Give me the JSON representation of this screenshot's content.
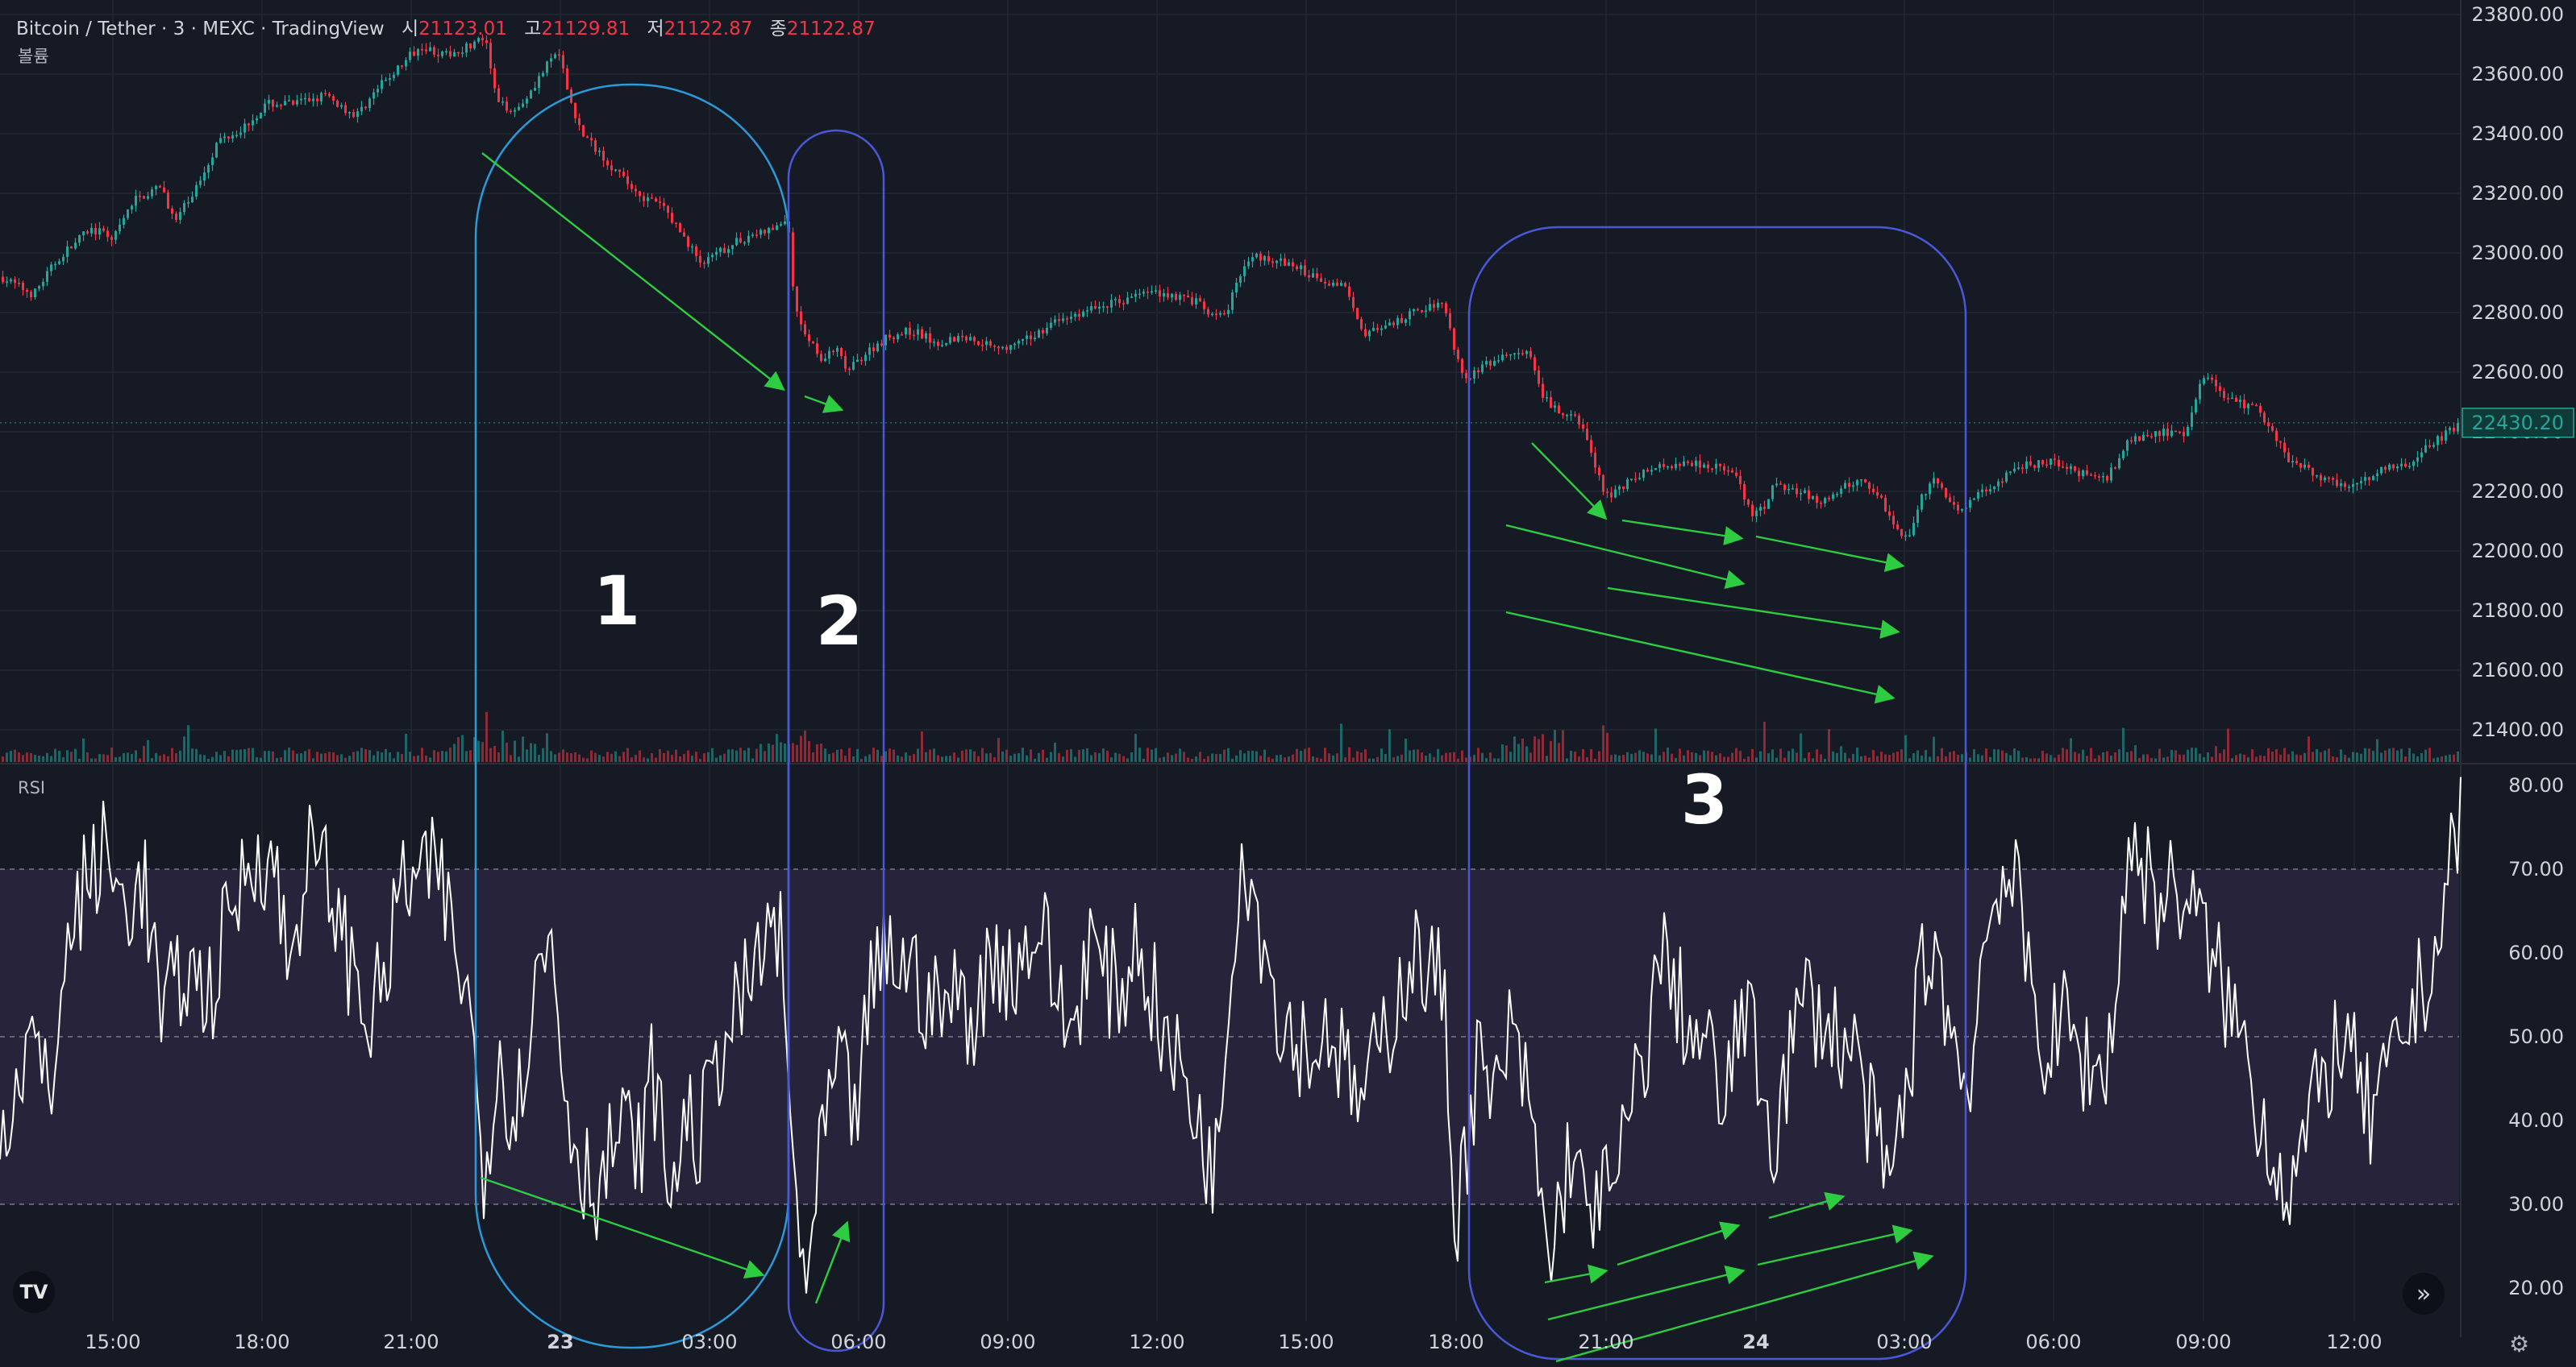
{
  "legend": {
    "symbol": "Bitcoin / Tether · 3 · MEXC · TradingView",
    "open_label": "시",
    "open_value": "21123.01",
    "high_label": "고",
    "high_value": "21129.81",
    "low_label": "저",
    "low_value": "21122.87",
    "close_label": "종",
    "close_value": "21122.87",
    "volume_label": "볼륨"
  },
  "rsi_panel": {
    "label": "RSI"
  },
  "colors": {
    "background": "#161a25",
    "up": "#26a69a",
    "down": "#f23645",
    "rsi_line": "#ffffff",
    "rsi_band": "#27233a",
    "arrow": "#2ecc40",
    "circle1": "#2a9bd8",
    "circle2": "#4a58d8",
    "circle3": "#4a58d8"
  },
  "icons": {
    "logo": "tradingview-logo-icon",
    "scroll": "double-chevron-right-icon",
    "settings": "gear-icon"
  },
  "tv_logo_text": "TV",
  "annotations": {
    "region1": "1",
    "region2": "2",
    "region3": "3"
  },
  "chart_data": [
    {
      "type": "candlestick",
      "title": "Bitcoin / Tether · 3 · MEXC · TradingView",
      "ylim": [
        21300,
        23800
      ],
      "y_ticks": [
        "23800.00",
        "23600.00",
        "23400.00",
        "23200.00",
        "23000.00",
        "22800.00",
        "22600.00",
        "22400.00",
        "22200.00",
        "22000.00",
        "21800.00",
        "21600.00",
        "21400.00"
      ],
      "x_ticks": [
        "15:00",
        "18:00",
        "21:00",
        "23",
        "03:00",
        "06:00",
        "09:00",
        "12:00",
        "15:00",
        "18:00",
        "21:00",
        "24",
        "03:00",
        "06:00",
        "09:00",
        "12:00"
      ],
      "current_price": "22430.20",
      "price_path": [
        [
          0,
          22920
        ],
        [
          40,
          22860
        ],
        [
          70,
          22980
        ],
        [
          110,
          23080
        ],
        [
          140,
          23050
        ],
        [
          165,
          23180
        ],
        [
          200,
          23220
        ],
        [
          215,
          23100
        ],
        [
          240,
          23210
        ],
        [
          270,
          23380
        ],
        [
          300,
          23420
        ],
        [
          330,
          23500
        ],
        [
          365,
          23500
        ],
        [
          400,
          23530
        ],
        [
          440,
          23460
        ],
        [
          470,
          23560
        ],
        [
          500,
          23640
        ],
        [
          520,
          23700
        ],
        [
          550,
          23660
        ],
        [
          575,
          23690
        ],
        [
          600,
          23720
        ],
        [
          615,
          23500
        ],
        [
          640,
          23480
        ],
        [
          660,
          23560
        ],
        [
          690,
          23680
        ],
        [
          705,
          23520
        ],
        [
          720,
          23400
        ],
        [
          745,
          23330
        ],
        [
          770,
          23250
        ],
        [
          800,
          23180
        ],
        [
          820,
          23160
        ],
        [
          845,
          23060
        ],
        [
          870,
          22960
        ],
        [
          900,
          23020
        ],
        [
          930,
          23060
        ],
        [
          960,
          23080
        ],
        [
          975,
          23120
        ],
        [
          985,
          22800
        ],
        [
          1000,
          22720
        ],
        [
          1020,
          22640
        ],
        [
          1035,
          22680
        ],
        [
          1050,
          22600
        ],
        [
          1070,
          22660
        ],
        [
          1100,
          22720
        ],
        [
          1130,
          22740
        ],
        [
          1160,
          22700
        ],
        [
          1190,
          22720
        ],
        [
          1220,
          22700
        ],
        [
          1250,
          22680
        ],
        [
          1280,
          22720
        ],
        [
          1300,
          22760
        ],
        [
          1330,
          22790
        ],
        [
          1360,
          22820
        ],
        [
          1390,
          22840
        ],
        [
          1420,
          22870
        ],
        [
          1450,
          22860
        ],
        [
          1480,
          22840
        ],
        [
          1505,
          22780
        ],
        [
          1520,
          22800
        ],
        [
          1540,
          22960
        ],
        [
          1560,
          22990
        ],
        [
          1600,
          22960
        ],
        [
          1630,
          22920
        ],
        [
          1670,
          22880
        ],
        [
          1690,
          22730
        ],
        [
          1720,
          22750
        ],
        [
          1760,
          22810
        ],
        [
          1790,
          22840
        ],
        [
          1800,
          22700
        ],
        [
          1815,
          22580
        ],
        [
          1840,
          22620
        ],
        [
          1870,
          22660
        ],
        [
          1895,
          22660
        ],
        [
          1910,
          22520
        ],
        [
          1935,
          22460
        ],
        [
          1960,
          22430
        ],
        [
          1975,
          22300
        ],
        [
          1990,
          22180
        ],
        [
          2010,
          22220
        ],
        [
          2050,
          22280
        ],
        [
          2090,
          22300
        ],
        [
          2120,
          22290
        ],
        [
          2150,
          22260
        ],
        [
          2170,
          22120
        ],
        [
          2190,
          22150
        ],
        [
          2200,
          22230
        ],
        [
          2230,
          22200
        ],
        [
          2260,
          22160
        ],
        [
          2290,
          22220
        ],
        [
          2310,
          22240
        ],
        [
          2330,
          22180
        ],
        [
          2350,
          22080
        ],
        [
          2365,
          22040
        ],
        [
          2380,
          22180
        ],
        [
          2400,
          22240
        ],
        [
          2420,
          22140
        ],
        [
          2440,
          22160
        ],
        [
          2470,
          22220
        ],
        [
          2500,
          22280
        ],
        [
          2540,
          22300
        ],
        [
          2580,
          22260
        ],
        [
          2610,
          22240
        ],
        [
          2640,
          22370
        ],
        [
          2680,
          22400
        ],
        [
          2710,
          22380
        ],
        [
          2730,
          22600
        ],
        [
          2750,
          22540
        ],
        [
          2770,
          22500
        ],
        [
          2800,
          22480
        ],
        [
          2820,
          22380
        ],
        [
          2840,
          22300
        ],
        [
          2870,
          22260
        ],
        [
          2900,
          22220
        ],
        [
          2930,
          22240
        ],
        [
          2960,
          22280
        ],
        [
          2990,
          22300
        ],
        [
          3010,
          22350
        ],
        [
          3050,
          22430
        ]
      ]
    },
    {
      "type": "line",
      "title": "RSI",
      "ylim": [
        15,
        82
      ],
      "y_ticks": [
        "80.00",
        "70.00",
        "60.00",
        "50.00",
        "40.00",
        "30.00",
        "20.00"
      ],
      "levels": [
        70,
        50,
        30
      ],
      "rsi_path": [
        [
          0,
          38
        ],
        [
          20,
          45
        ],
        [
          40,
          50
        ],
        [
          60,
          42
        ],
        [
          80,
          58
        ],
        [
          100,
          67
        ],
        [
          130,
          72
        ],
        [
          150,
          66
        ],
        [
          180,
          68
        ],
        [
          200,
          52
        ],
        [
          230,
          58
        ],
        [
          260,
          55
        ],
        [
          290,
          66
        ],
        [
          320,
          73
        ],
        [
          340,
          70
        ],
        [
          360,
          58
        ],
        [
          380,
          72
        ],
        [
          410,
          68
        ],
        [
          430,
          60
        ],
        [
          460,
          52
        ],
        [
          480,
          58
        ],
        [
          500,
          69
        ],
        [
          520,
          68
        ],
        [
          545,
          70
        ],
        [
          560,
          62
        ],
        [
          580,
          55
        ],
        [
          600,
          35
        ],
        [
          620,
          48
        ],
        [
          640,
          40
        ],
        [
          660,
          55
        ],
        [
          685,
          62
        ],
        [
          700,
          44
        ],
        [
          720,
          35
        ],
        [
          745,
          32
        ],
        [
          770,
          40
        ],
        [
          790,
          35
        ],
        [
          810,
          46
        ],
        [
          830,
          31
        ],
        [
          850,
          40
        ],
        [
          870,
          38
        ],
        [
          890,
          48
        ],
        [
          910,
          52
        ],
        [
          940,
          58
        ],
        [
          955,
          64
        ],
        [
          970,
          60
        ],
        [
          980,
          38
        ],
        [
          990,
          28
        ],
        [
          1000,
          22
        ],
        [
          1010,
          26
        ],
        [
          1020,
          38
        ],
        [
          1040,
          46
        ],
        [
          1060,
          40
        ],
        [
          1080,
          55
        ],
        [
          1100,
          60
        ],
        [
          1130,
          58
        ],
        [
          1160,
          53
        ],
        [
          1190,
          55
        ],
        [
          1210,
          52
        ],
        [
          1230,
          60
        ],
        [
          1260,
          58
        ],
        [
          1290,
          64
        ],
        [
          1310,
          55
        ],
        [
          1330,
          50
        ],
        [
          1350,
          62
        ],
        [
          1370,
          57
        ],
        [
          1390,
          55
        ],
        [
          1410,
          62
        ],
        [
          1430,
          55
        ],
        [
          1450,
          48
        ],
        [
          1470,
          45
        ],
        [
          1490,
          38
        ],
        [
          1510,
          34
        ],
        [
          1525,
          58
        ],
        [
          1540,
          73
        ],
        [
          1555,
          68
        ],
        [
          1570,
          60
        ],
        [
          1590,
          52
        ],
        [
          1610,
          50
        ],
        [
          1630,
          48
        ],
        [
          1650,
          52
        ],
        [
          1670,
          45
        ],
        [
          1690,
          42
        ],
        [
          1710,
          48
        ],
        [
          1730,
          54
        ],
        [
          1750,
          60
        ],
        [
          1770,
          58
        ],
        [
          1790,
          56
        ],
        [
          1805,
          28
        ],
        [
          1820,
          38
        ],
        [
          1835,
          48
        ],
        [
          1850,
          40
        ],
        [
          1870,
          50
        ],
        [
          1890,
          45
        ],
        [
          1905,
          36
        ],
        [
          1920,
          22
        ],
        [
          1935,
          30
        ],
        [
          1950,
          38
        ],
        [
          1965,
          28
        ],
        [
          1980,
          32
        ],
        [
          2000,
          30
        ],
        [
          2020,
          40
        ],
        [
          2040,
          48
        ],
        [
          2060,
          60
        ],
        [
          2080,
          55
        ],
        [
          2100,
          50
        ],
        [
          2120,
          48
        ],
        [
          2140,
          40
        ],
        [
          2160,
          55
        ],
        [
          2180,
          46
        ],
        [
          2200,
          38
        ],
        [
          2220,
          48
        ],
        [
          2240,
          55
        ],
        [
          2260,
          52
        ],
        [
          2280,
          50
        ],
        [
          2300,
          48
        ],
        [
          2320,
          40
        ],
        [
          2340,
          32
        ],
        [
          2360,
          40
        ],
        [
          2380,
          56
        ],
        [
          2400,
          62
        ],
        [
          2420,
          50
        ],
        [
          2440,
          44
        ],
        [
          2460,
          60
        ],
        [
          2480,
          70
        ],
        [
          2500,
          67
        ],
        [
          2520,
          55
        ],
        [
          2540,
          48
        ],
        [
          2560,
          52
        ],
        [
          2580,
          48
        ],
        [
          2600,
          45
        ],
        [
          2620,
          50
        ],
        [
          2640,
          73
        ],
        [
          2660,
          70
        ],
        [
          2680,
          66
        ],
        [
          2700,
          68
        ],
        [
          2720,
          65
        ],
        [
          2740,
          60
        ],
        [
          2760,
          55
        ],
        [
          2780,
          50
        ],
        [
          2800,
          42
        ],
        [
          2820,
          36
        ],
        [
          2840,
          32
        ],
        [
          2860,
          38
        ],
        [
          2880,
          44
        ],
        [
          2900,
          50
        ],
        [
          2920,
          46
        ],
        [
          2940,
          40
        ],
        [
          2960,
          44
        ],
        [
          2980,
          50
        ],
        [
          3000,
          55
        ],
        [
          3020,
          60
        ],
        [
          3040,
          70
        ],
        [
          3055,
          82
        ]
      ]
    }
  ]
}
